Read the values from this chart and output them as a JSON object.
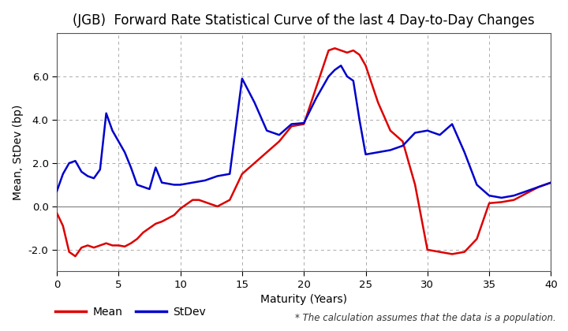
{
  "title": "(JGB)  Forward Rate Statistical Curve of the last 4 Day-to-Day Changes",
  "xlabel": "Maturity (Years)",
  "ylabel": "Mean, StDev (bp)",
  "xlim": [
    0,
    40
  ],
  "ylim": [
    -3,
    8
  ],
  "yticks": [
    -2.0,
    0.0,
    2.0,
    4.0,
    6.0
  ],
  "xticks": [
    0,
    5,
    10,
    15,
    20,
    25,
    30,
    35,
    40
  ],
  "legend_items": [
    "Mean",
    "StDev"
  ],
  "legend_colors": [
    "#dd0000",
    "#0000cc"
  ],
  "footnote": "* The calculation assumes that the data is a population.",
  "mean_x": [
    0,
    0.5,
    1,
    1.5,
    2,
    2.5,
    3,
    3.5,
    4,
    4.5,
    5,
    5.5,
    6,
    6.5,
    7,
    7.5,
    8,
    8.5,
    9,
    9.5,
    10,
    10.5,
    11,
    11.5,
    12,
    12.5,
    13,
    14,
    15,
    16,
    17,
    18,
    19,
    20,
    21,
    22,
    22.5,
    23,
    23.5,
    24,
    24.5,
    25,
    26,
    27,
    28,
    29,
    30,
    31,
    32,
    33,
    34,
    35,
    36,
    37,
    38,
    39,
    40
  ],
  "mean_y": [
    -0.3,
    -0.9,
    -2.1,
    -2.3,
    -1.9,
    -1.8,
    -1.9,
    -1.8,
    -1.7,
    -1.8,
    -1.8,
    -1.85,
    -1.7,
    -1.5,
    -1.2,
    -1.0,
    -0.8,
    -0.7,
    -0.55,
    -0.4,
    -0.1,
    0.1,
    0.3,
    0.3,
    0.2,
    0.1,
    0.0,
    0.3,
    1.5,
    2.0,
    2.5,
    3.0,
    3.7,
    3.8,
    5.5,
    7.2,
    7.3,
    7.2,
    7.1,
    7.2,
    7.0,
    6.5,
    4.8,
    3.5,
    3.0,
    1.0,
    -2.0,
    -2.1,
    -2.2,
    -2.1,
    -1.5,
    0.15,
    0.2,
    0.3,
    0.6,
    0.9,
    1.1
  ],
  "stdev_x": [
    0,
    0.5,
    1,
    1.5,
    2,
    2.5,
    3,
    3.5,
    4,
    4.5,
    5,
    5.5,
    6,
    6.5,
    7,
    7.5,
    8,
    8.5,
    9,
    9.5,
    10,
    10.5,
    11,
    11.5,
    12,
    12.5,
    13,
    14,
    15,
    16,
    17,
    18,
    19,
    20,
    21,
    22,
    22.5,
    23,
    23.5,
    24,
    24.5,
    25,
    26,
    27,
    28,
    29,
    30,
    31,
    32,
    33,
    34,
    35,
    36,
    37,
    38,
    39,
    40
  ],
  "stdev_y": [
    0.7,
    1.5,
    2.0,
    2.1,
    1.6,
    1.4,
    1.3,
    1.7,
    4.3,
    3.5,
    3.0,
    2.5,
    1.8,
    1.0,
    0.9,
    0.8,
    1.8,
    1.1,
    1.05,
    1.0,
    1.0,
    1.05,
    1.1,
    1.15,
    1.2,
    1.3,
    1.4,
    1.5,
    5.9,
    4.8,
    3.5,
    3.3,
    3.8,
    3.85,
    5.0,
    6.0,
    6.3,
    6.5,
    6.0,
    5.8,
    4.0,
    2.4,
    2.5,
    2.6,
    2.8,
    3.4,
    3.5,
    3.3,
    3.8,
    2.5,
    1.0,
    0.5,
    0.4,
    0.5,
    0.7,
    0.9,
    1.1
  ],
  "mean_color": "#dd0000",
  "stdev_color": "#0000cc",
  "line_width": 1.8,
  "bg_color": "#ffffff",
  "grid_color": "#aaaaaa",
  "title_fontsize": 12,
  "axis_fontsize": 10,
  "tick_fontsize": 9.5
}
